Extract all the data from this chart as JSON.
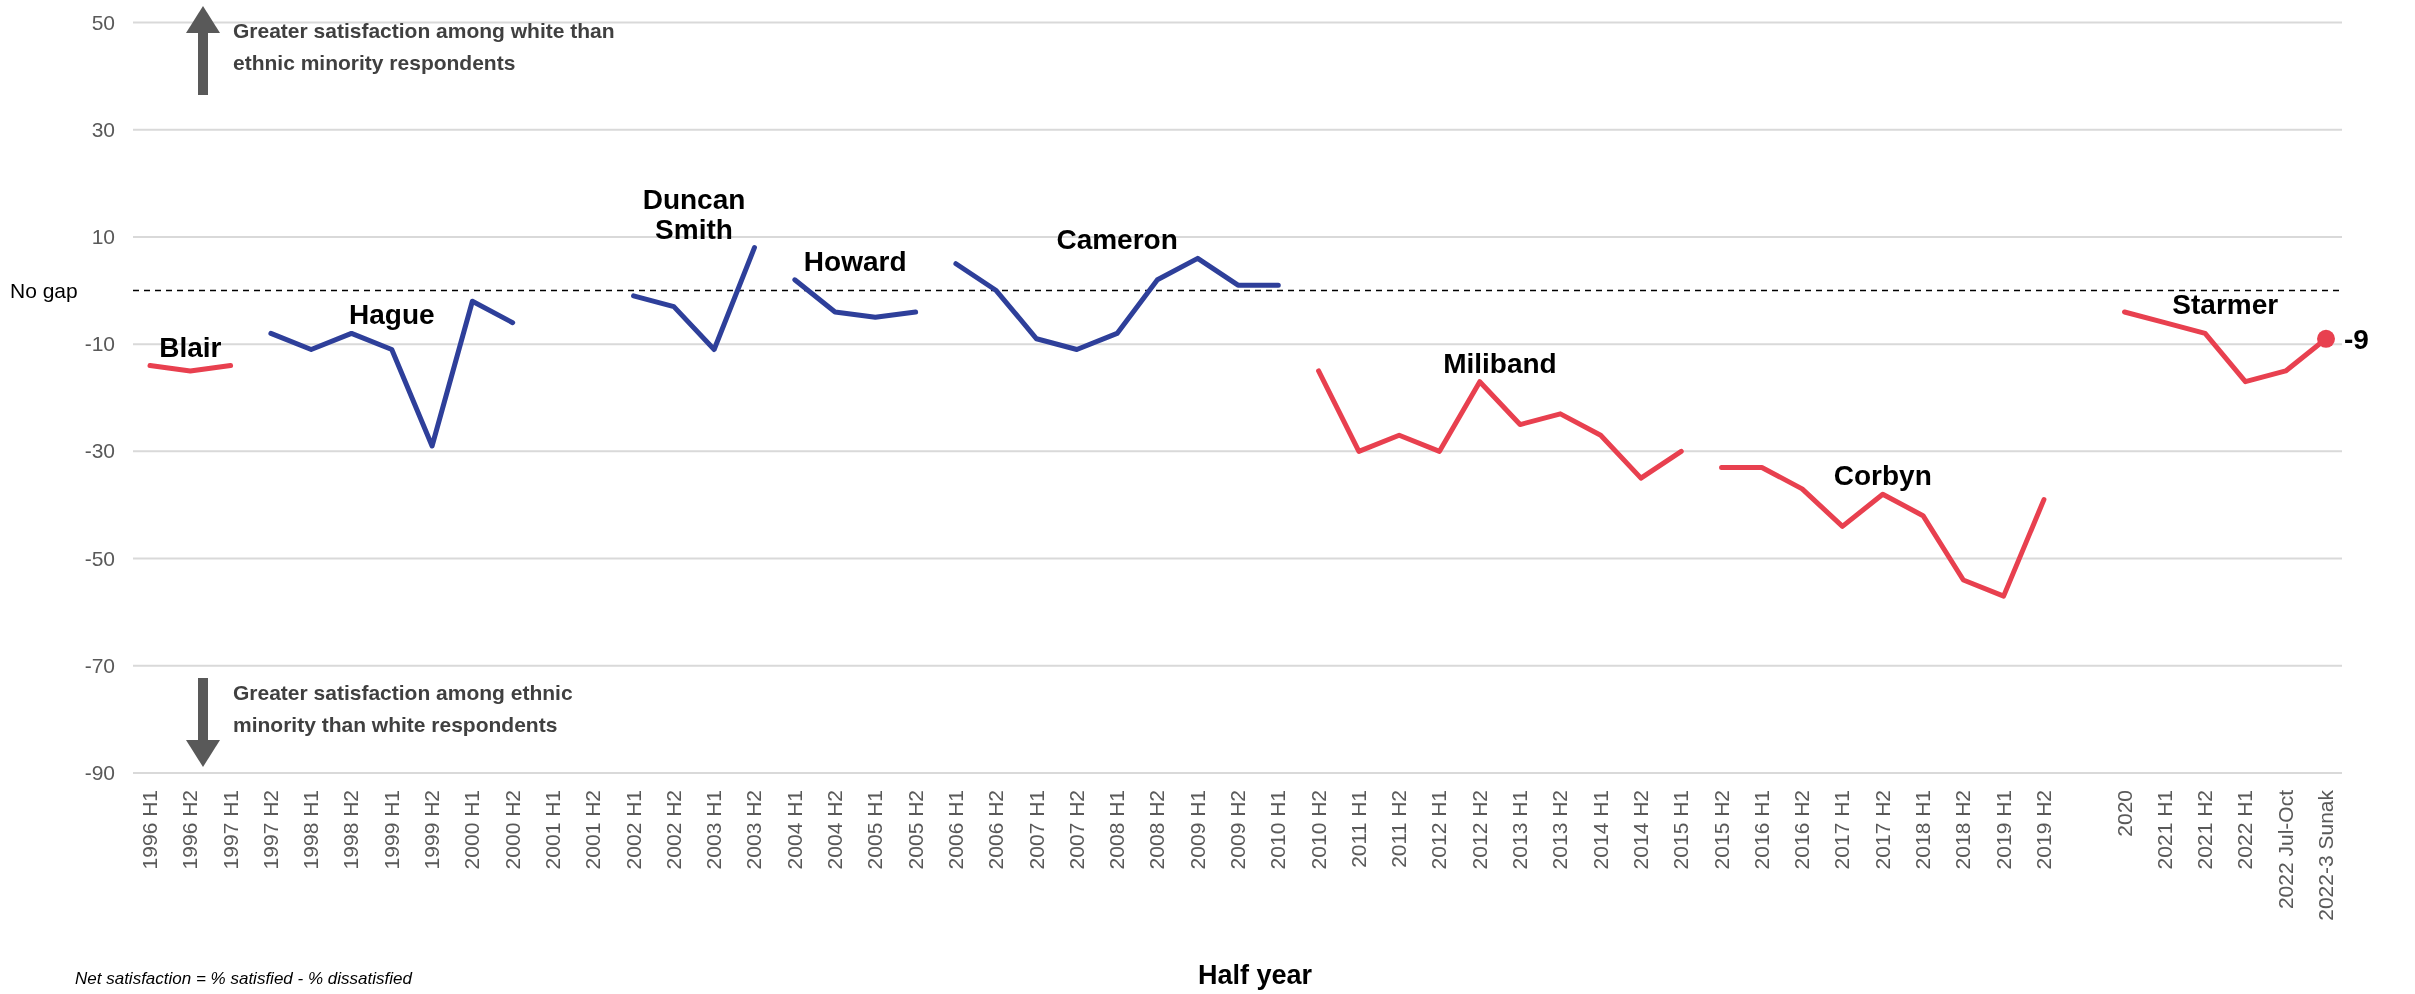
{
  "chart_data": {
    "type": "line",
    "xlabel": "Half year",
    "categories": [
      "1996 H1",
      "1996 H2",
      "1997 H1",
      "1997 H2",
      "1998 H1",
      "1998 H2",
      "1999 H1",
      "1999 H2",
      "2000 H1",
      "2000 H2",
      "2001 H1",
      "2001 H2",
      "2002 H1",
      "2002 H2",
      "2003 H1",
      "2003 H2",
      "2004 H1",
      "2004 H2",
      "2005 H1",
      "2005 H2",
      "2006 H1",
      "2006 H2",
      "2007 H1",
      "2007 H2",
      "2008 H1",
      "2008 H2",
      "2009 H1",
      "2009 H2",
      "2010 H1",
      "2010 H2",
      "2011 H1",
      "2011 H2",
      "2012 H1",
      "2012 H2",
      "2013 H1",
      "2013 H2",
      "2014 H1",
      "2014 H2",
      "2015 H1",
      "2015 H2",
      "2016 H1",
      "2016 H2",
      "2017 H1",
      "2017 H2",
      "2018 H1",
      "2018 H2",
      "2019 H1",
      "2019 H2",
      null,
      "2020",
      "2021 H1",
      "2021 H2",
      "2022 H1",
      "2022 Jul-Oct",
      "2022-3 Sunak"
    ],
    "series": [
      {
        "name": "Blair",
        "color": "#e8404f",
        "values": [
          -14,
          -15,
          -14,
          null,
          null,
          null,
          null,
          null,
          null,
          null,
          null,
          null,
          null,
          null,
          null,
          null,
          null,
          null,
          null,
          null,
          null,
          null,
          null,
          null,
          null,
          null,
          null,
          null,
          null,
          null,
          null,
          null,
          null,
          null,
          null,
          null,
          null,
          null,
          null,
          null,
          null,
          null,
          null,
          null,
          null,
          null,
          null,
          null,
          null,
          null,
          null,
          null,
          null,
          null,
          null
        ]
      },
      {
        "name": "Hague",
        "color": "#2e3f9a",
        "values": [
          null,
          null,
          null,
          -8,
          -11,
          -8,
          -11,
          -29,
          -2,
          -6,
          null,
          null,
          null,
          null,
          null,
          null,
          null,
          null,
          null,
          null,
          null,
          null,
          null,
          null,
          null,
          null,
          null,
          null,
          null,
          null,
          null,
          null,
          null,
          null,
          null,
          null,
          null,
          null,
          null,
          null,
          null,
          null,
          null,
          null,
          null,
          null,
          null,
          null,
          null,
          null,
          null,
          null,
          null,
          null,
          null
        ]
      },
      {
        "name": "Duncan Smith",
        "color": "#2e3f9a",
        "values": [
          null,
          null,
          null,
          null,
          null,
          null,
          null,
          null,
          null,
          null,
          null,
          null,
          -1,
          -3,
          -11,
          8,
          null,
          null,
          null,
          null,
          null,
          null,
          null,
          null,
          null,
          null,
          null,
          null,
          null,
          null,
          null,
          null,
          null,
          null,
          null,
          null,
          null,
          null,
          null,
          null,
          null,
          null,
          null,
          null,
          null,
          null,
          null,
          null,
          null,
          null,
          null,
          null,
          null,
          null,
          null
        ]
      },
      {
        "name": "Howard",
        "color": "#2e3f9a",
        "values": [
          null,
          null,
          null,
          null,
          null,
          null,
          null,
          null,
          null,
          null,
          null,
          null,
          null,
          null,
          null,
          null,
          2,
          -4,
          -5,
          -4,
          null,
          null,
          null,
          null,
          null,
          null,
          null,
          null,
          null,
          null,
          null,
          null,
          null,
          null,
          null,
          null,
          null,
          null,
          null,
          null,
          null,
          null,
          null,
          null,
          null,
          null,
          null,
          null,
          null,
          null,
          null,
          null,
          null,
          null,
          null
        ]
      },
      {
        "name": "Cameron",
        "color": "#2e3f9a",
        "values": [
          null,
          null,
          null,
          null,
          null,
          null,
          null,
          null,
          null,
          null,
          null,
          null,
          null,
          null,
          null,
          null,
          null,
          null,
          null,
          null,
          5,
          0,
          -9,
          -11,
          -8,
          2,
          6,
          1,
          1,
          null,
          null,
          null,
          null,
          null,
          null,
          null,
          null,
          null,
          null,
          null,
          null,
          null,
          null,
          null,
          null,
          null,
          null,
          null,
          null,
          null,
          null,
          null,
          null,
          null,
          null
        ]
      },
      {
        "name": "Miliband",
        "color": "#e8404f",
        "values": [
          null,
          null,
          null,
          null,
          null,
          null,
          null,
          null,
          null,
          null,
          null,
          null,
          null,
          null,
          null,
          null,
          null,
          null,
          null,
          null,
          null,
          null,
          null,
          null,
          null,
          null,
          null,
          null,
          null,
          -15,
          -30,
          -27,
          -30,
          -17,
          -25,
          -23,
          -27,
          -35,
          -30,
          null,
          null,
          null,
          null,
          null,
          null,
          null,
          null,
          null,
          null,
          null,
          null,
          null,
          null,
          null,
          null
        ]
      },
      {
        "name": "Corbyn",
        "color": "#e8404f",
        "values": [
          null,
          null,
          null,
          null,
          null,
          null,
          null,
          null,
          null,
          null,
          null,
          null,
          null,
          null,
          null,
          null,
          null,
          null,
          null,
          null,
          null,
          null,
          null,
          null,
          null,
          null,
          null,
          null,
          null,
          null,
          null,
          null,
          null,
          null,
          null,
          null,
          null,
          null,
          null,
          -33,
          -33,
          -37,
          -44,
          -38,
          -42,
          -54,
          -57,
          -39,
          null,
          null,
          null,
          null,
          null,
          null,
          null
        ]
      },
      {
        "name": "Starmer",
        "color": "#e8404f",
        "values": [
          null,
          null,
          null,
          null,
          null,
          null,
          null,
          null,
          null,
          null,
          null,
          null,
          null,
          null,
          null,
          null,
          null,
          null,
          null,
          null,
          null,
          null,
          null,
          null,
          null,
          null,
          null,
          null,
          null,
          null,
          null,
          null,
          null,
          null,
          null,
          null,
          null,
          null,
          null,
          null,
          null,
          null,
          null,
          null,
          null,
          null,
          null,
          null,
          null,
          -4,
          -6,
          -8,
          -17,
          -15,
          -9
        ],
        "value_labels": [
          null,
          null,
          null,
          null,
          null,
          null,
          null,
          null,
          null,
          null,
          null,
          null,
          null,
          null,
          null,
          null,
          null,
          null,
          null,
          null,
          null,
          null,
          null,
          null,
          null,
          null,
          null,
          null,
          null,
          null,
          null,
          null,
          null,
          null,
          null,
          null,
          null,
          null,
          null,
          null,
          null,
          null,
          null,
          null,
          null,
          null,
          null,
          null,
          null,
          null,
          null,
          null,
          null,
          null,
          "-9"
        ]
      }
    ],
    "ylim": [
      -90,
      50
    ],
    "yticks": [
      -90,
      -70,
      -50,
      -30,
      -10,
      10,
      30,
      50
    ],
    "grid": "y",
    "line_style": "solid",
    "ref_lines": [
      {
        "axis": "y",
        "value": 0,
        "label": "No gap",
        "color": "#000000",
        "line_style": "dashed"
      }
    ],
    "annotations": [
      "Greater satisfaction among white than ethnic minority respondents",
      "Greater satisfaction among ethnic minority than white respondents",
      "Net satisfaction = % satisfied - % dissatisfied"
    ]
  }
}
